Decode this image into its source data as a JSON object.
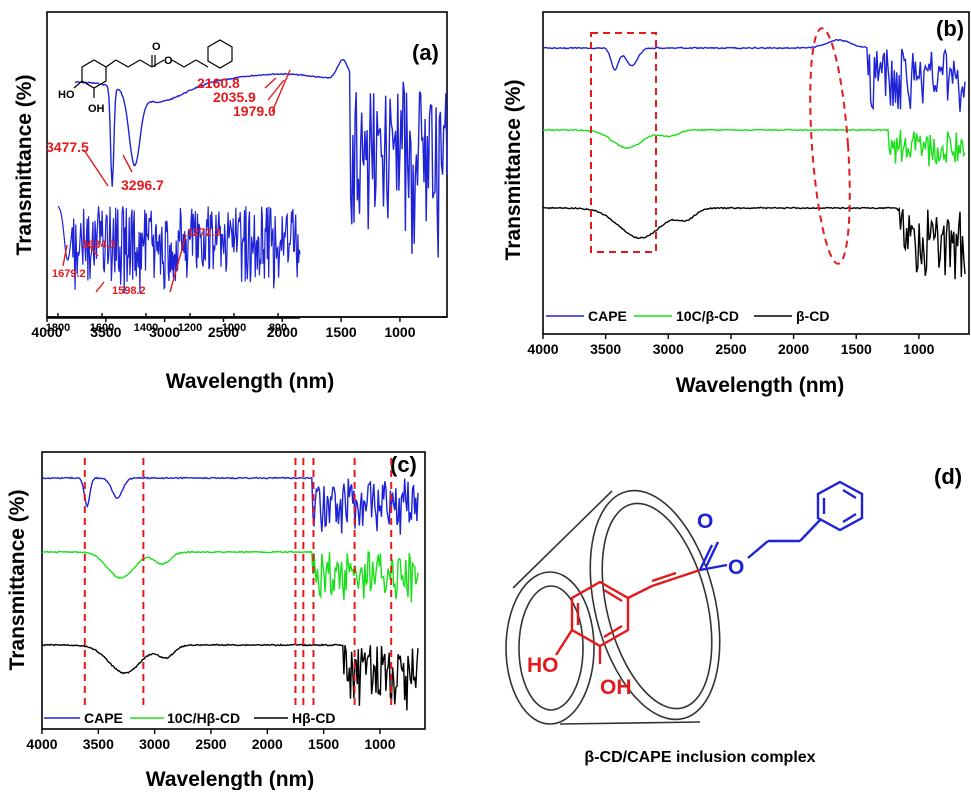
{
  "colors": {
    "cape": "#1f23d6",
    "complex": "#19e019",
    "cd": "#000000",
    "annotation": "#e31a1c"
  },
  "panel_a": {
    "label": "(a)",
    "xlabel": "Wavelength (nm)",
    "ylabel": "Transmittance (%)",
    "peaks": [
      "3477.5",
      "3296.7",
      "2160.8",
      "2035.9",
      "1979.0"
    ],
    "inset_peaks": [
      "1679.2",
      "1634.3",
      "1598.2",
      "1272.3"
    ],
    "inset_ticks": [
      "1800",
      "1600",
      "1400",
      "1200",
      "1000",
      "800"
    ]
  },
  "panel_b": {
    "label": "(b)",
    "xlabel": "Wavelength (nm)",
    "ylabel": "Transmittance (%)",
    "legend": [
      "CAPE",
      "10C/β-CD",
      "β-CD"
    ]
  },
  "panel_c": {
    "label": "(c)",
    "xlabel": "Wavelength (nm)",
    "ylabel": "Transmittance (%)",
    "legend": [
      "CAPE",
      "10C/Hβ-CD",
      "Hβ-CD"
    ]
  },
  "panel_d": {
    "label": "(d)",
    "caption": "β-CD/CAPE inclusion complex",
    "atoms": {
      "o1": "O",
      "o2": "O",
      "ho": "HO",
      "oh": "OH"
    }
  },
  "chart_data": [
    {
      "type": "line",
      "panel": "(a)",
      "xlabel": "Wavelength (nm)",
      "ylabel": "Transmittance (%)",
      "xlim": [
        4000,
        600
      ],
      "x_ticks": [
        "4000",
        "3500",
        "3000",
        "2500",
        "2000",
        "1500",
        "1000"
      ],
      "series": [
        {
          "name": "CAPE"
        }
      ],
      "annotations": [
        "3477.5",
        "3296.7",
        "2160.8",
        "2035.9",
        "1979.0",
        "1679.2",
        "1634.3",
        "1598.2",
        "1272.3"
      ]
    },
    {
      "type": "line",
      "panel": "(b)",
      "xlabel": "Wavelength (nm)",
      "ylabel": "Transmittance (%)",
      "xlim": [
        4000,
        600
      ],
      "x_ticks": [
        "4000",
        "3500",
        "3000",
        "2500",
        "2000",
        "1500",
        "1000"
      ],
      "legend_position": "bottom",
      "series": [
        {
          "name": "CAPE"
        },
        {
          "name": "10C/β-CD"
        },
        {
          "name": "β-CD"
        }
      ]
    },
    {
      "type": "line",
      "panel": "(c)",
      "xlabel": "Wavelength (nm)",
      "ylabel": "Transmittance (%)",
      "xlim": [
        4000,
        600
      ],
      "x_ticks": [
        "4000",
        "3500",
        "3000",
        "2500",
        "2000",
        "1500",
        "1000"
      ],
      "legend_position": "bottom",
      "series": [
        {
          "name": "CAPE"
        },
        {
          "name": "10C/Hβ-CD"
        },
        {
          "name": "Hβ-CD"
        }
      ],
      "marked_wavenumbers": [
        3620,
        3100,
        1750,
        1680,
        1590,
        1225,
        900
      ]
    }
  ]
}
